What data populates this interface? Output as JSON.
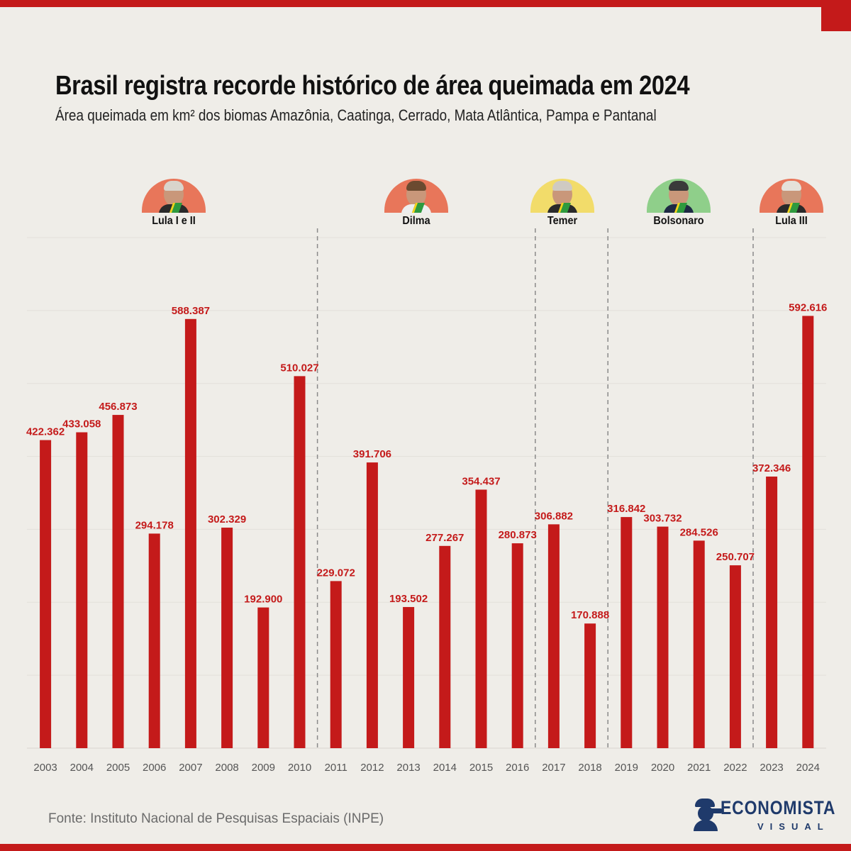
{
  "header": {
    "title": "Brasil registra recorde histórico de área queimada em 2024",
    "subtitle": "Área queimada em km² dos biomas Amazônia, Caatinga, Cerrado, Mata Atlântica, Pampa e Pantanal"
  },
  "colors": {
    "bar": "#c41a1a",
    "accent": "#c41a1a",
    "divider": "#8a8a8a",
    "brand": "#1f3a6b"
  },
  "presidents": [
    {
      "name": "Lula I e II",
      "color": "#e8765a",
      "icon": "portrait-lula"
    },
    {
      "name": "Dilma",
      "color": "#e8765a",
      "icon": "portrait-dilma"
    },
    {
      "name": "Temer",
      "color": "#f2dc6a",
      "icon": "portrait-temer"
    },
    {
      "name": "Bolsonaro",
      "color": "#8fcf8a",
      "icon": "portrait-bolsonaro"
    },
    {
      "name": "Lula III",
      "color": "#e8765a",
      "icon": "portrait-lula"
    }
  ],
  "chart_data": {
    "type": "bar",
    "categories": [
      "2003",
      "2004",
      "2005",
      "2006",
      "2007",
      "2008",
      "2009",
      "2010",
      "2011",
      "2012",
      "2013",
      "2014",
      "2015",
      "2016",
      "2017",
      "2018",
      "2019",
      "2020",
      "2021",
      "2022",
      "2023",
      "2024"
    ],
    "values": [
      422362,
      433058,
      456873,
      294178,
      588387,
      302329,
      192900,
      510027,
      229072,
      391706,
      193502,
      277267,
      354437,
      280873,
      306882,
      170888,
      316842,
      303732,
      284526,
      250707,
      372346,
      592616
    ],
    "data_labels": [
      "422.362",
      "433.058",
      "456.873",
      "294.178",
      "588.387",
      "302.329",
      "192.900",
      "510.027",
      "229.072",
      "391.706",
      "193.502",
      "277.267",
      "354.437",
      "280.873",
      "306.882",
      "170.888",
      "316.842",
      "303.732",
      "284.526",
      "250.707",
      "372.346",
      "592.616"
    ],
    "ylim": [
      0,
      700000
    ],
    "grid": true,
    "period_dividers_after": [
      "2010",
      "2016",
      "2018",
      "2022"
    ]
  },
  "footer": {
    "source": "Fonte: Instituto Nacional de Pesquisas Espaciais (INPE)",
    "logo_word": "ECONOMISTA",
    "logo_sub": "VISUAL"
  }
}
